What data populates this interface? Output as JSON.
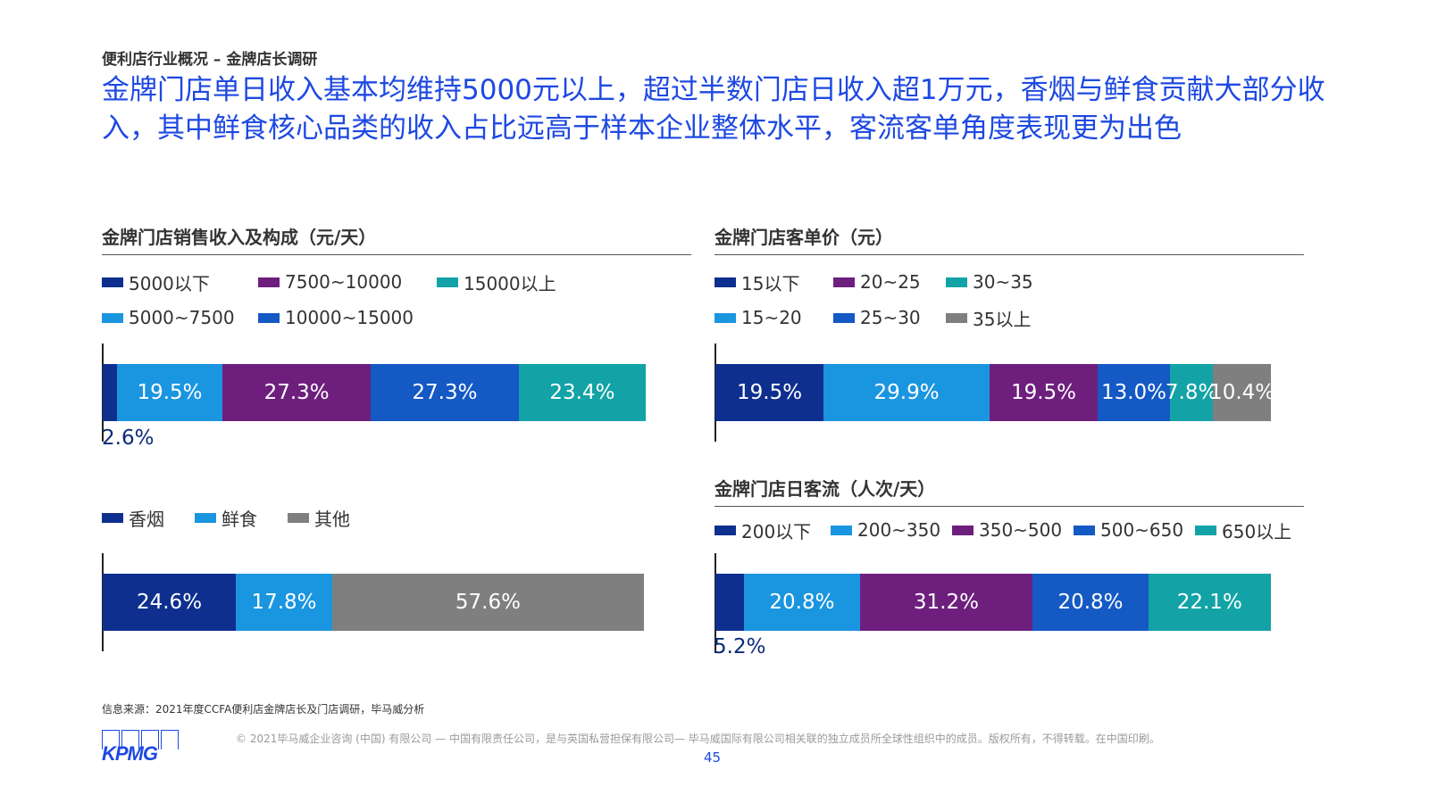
{
  "header": {
    "section": "便利店行业概况 – 金牌店长调研",
    "headline": "金牌门店单日收入基本均维持5000元以上，超过半数门店日收入超1万元，香烟与鲜食贡献大部分收入，其中鲜食核心品类的收入占比远高于样本企业整体水平，客流客单角度表现更为出色"
  },
  "colors": {
    "navy": "#0f2f8f",
    "light_blue": "#1a95e0",
    "purple": "#6e1f7e",
    "mid_blue": "#1459c4",
    "teal": "#13a3a6",
    "gray": "#7f7f7f"
  },
  "chart_data": [
    {
      "id": "revenue",
      "type": "bar",
      "orientation": "horizontal-stacked",
      "title": "金牌门店销售收入及构成（元/天）",
      "legend_placement": "top",
      "series": [
        {
          "name": "5000以下",
          "value": 2.6,
          "label": "2.6%",
          "color": "navy"
        },
        {
          "name": "5000~7500",
          "value": 19.5,
          "label": "19.5%",
          "color": "light_blue"
        },
        {
          "name": "7500~10000",
          "value": 27.3,
          "label": "27.3%",
          "color": "purple"
        },
        {
          "name": "10000~15000",
          "value": 27.3,
          "label": "27.3%",
          "color": "mid_blue"
        },
        {
          "name": "15000以上",
          "value": 23.4,
          "label": "23.4%",
          "color": "teal"
        }
      ]
    },
    {
      "id": "composition",
      "type": "bar",
      "orientation": "horizontal-stacked",
      "title": "",
      "legend_placement": "top",
      "series": [
        {
          "name": "香烟",
          "value": 24.6,
          "label": "24.6%",
          "color": "navy"
        },
        {
          "name": "鲜食",
          "value": 17.8,
          "label": "17.8%",
          "color": "light_blue"
        },
        {
          "name": "其他",
          "value": 57.6,
          "label": "57.6%",
          "color": "gray"
        }
      ]
    },
    {
      "id": "price",
      "type": "bar",
      "orientation": "horizontal-stacked",
      "title": "金牌门店客单价（元）",
      "legend_placement": "top",
      "series": [
        {
          "name": "15以下",
          "value": 19.5,
          "label": "19.5%",
          "color": "navy"
        },
        {
          "name": "15~20",
          "value": 29.9,
          "label": "29.9%",
          "color": "light_blue"
        },
        {
          "name": "20~25",
          "value": 19.5,
          "label": "19.5%",
          "color": "purple"
        },
        {
          "name": "25~30",
          "value": 13.0,
          "label": "13.0%",
          "color": "mid_blue"
        },
        {
          "name": "30~35",
          "value": 7.8,
          "label": "7.8%",
          "color": "teal"
        },
        {
          "name": "35以上",
          "value": 10.4,
          "label": "10.4%",
          "color": "gray"
        }
      ]
    },
    {
      "id": "traffic",
      "type": "bar",
      "orientation": "horizontal-stacked",
      "title": "金牌门店日客流（人次/天）",
      "legend_placement": "top",
      "series": [
        {
          "name": "200以下",
          "value": 5.2,
          "label": "5.2%",
          "color": "navy"
        },
        {
          "name": "200~350",
          "value": 20.8,
          "label": "20.8%",
          "color": "light_blue"
        },
        {
          "name": "350~500",
          "value": 31.2,
          "label": "31.2%",
          "color": "purple"
        },
        {
          "name": "500~650",
          "value": 20.8,
          "label": "20.8%",
          "color": "mid_blue"
        },
        {
          "name": "650以上",
          "value": 22.1,
          "label": "22.1%",
          "color": "teal"
        }
      ]
    }
  ],
  "footer": {
    "source": "信息来源：2021年度CCFA便利店金牌店长及门店调研，毕马威分析",
    "copyright": "© 2021毕马威企业咨询 (中国) 有限公司 — 中国有限责任公司，是与英国私营担保有限公司— 毕马威国际有限公司相关联的独立成员所全球性组织中的成员。版权所有，不得转载。在中国印刷。",
    "page": "45",
    "logo": "KPMG"
  }
}
